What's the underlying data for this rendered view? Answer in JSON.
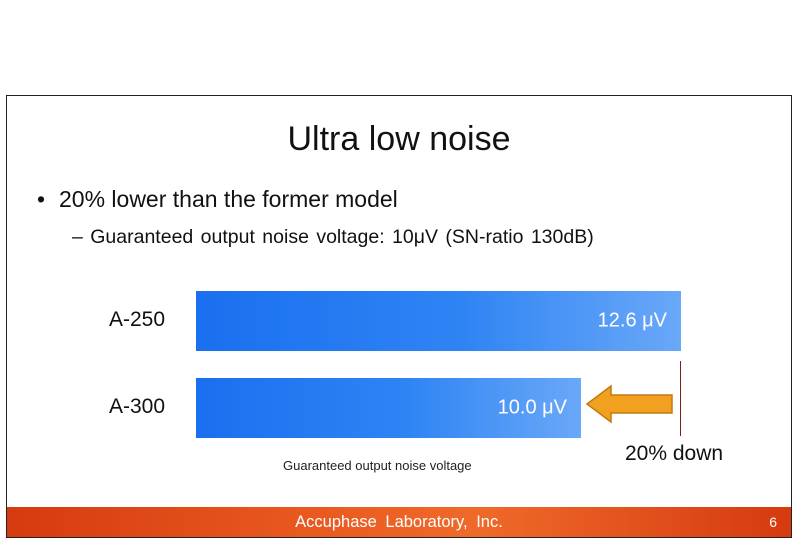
{
  "slide": {
    "title": "Ultra low noise",
    "bullets": [
      {
        "text": "20% lower than the former model"
      },
      {
        "text": "– Guaranteed output noise voltage: 10μV (SN-ratio 130dB)"
      }
    ]
  },
  "chart_data": {
    "type": "bar",
    "orientation": "horizontal",
    "categories": [
      "A-250",
      "A-300"
    ],
    "values": [
      12.6,
      10.0
    ],
    "value_labels": [
      "12.6 μV",
      "10.0 μV"
    ],
    "unit": "μV",
    "xlabel": "Guaranteed output noise voltage",
    "annotation": "20% down",
    "colors": {
      "bar": "#2f84f4",
      "arrow": "#f2a020",
      "marker": "#7a1f1f"
    }
  },
  "footer": {
    "company": "Accuphase Laboratory, Inc.",
    "page_number": "6"
  }
}
